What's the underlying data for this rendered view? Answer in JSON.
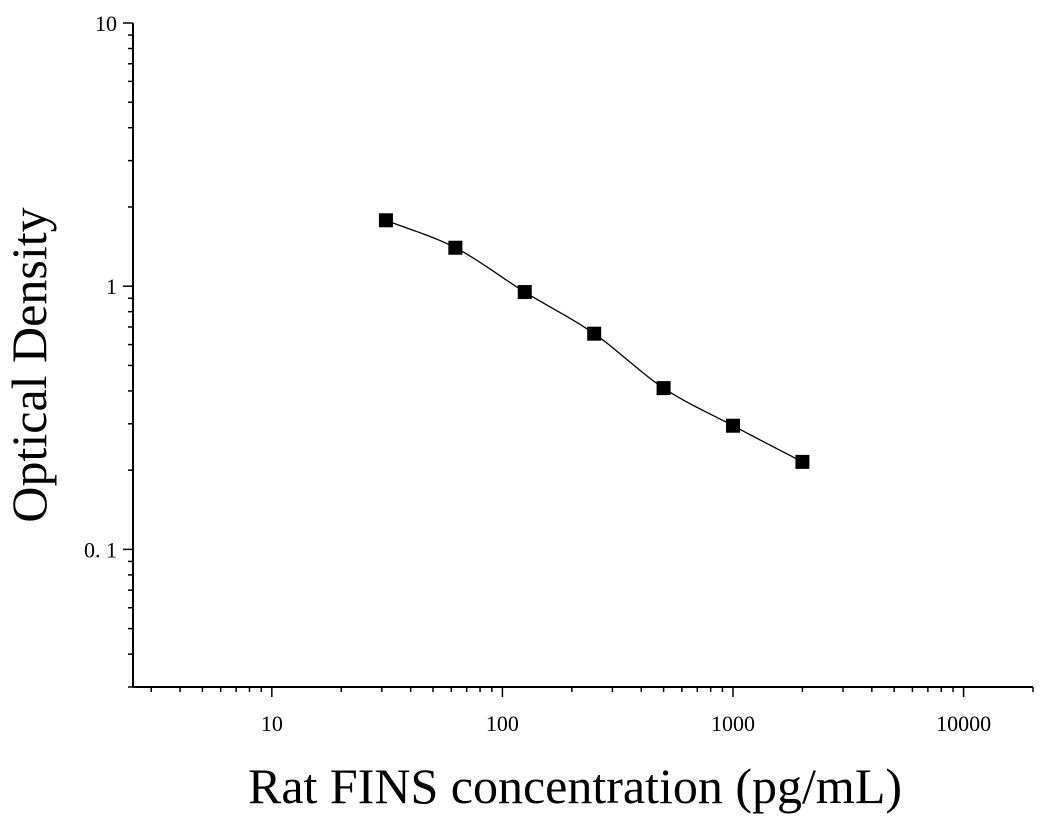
{
  "chart_data": {
    "type": "scatter",
    "xlabel": "Rat FINS concentration (pg/mL)",
    "ylabel": "Optical Density",
    "x_scale": "log",
    "y_scale": "log",
    "xlim": [
      2.5,
      20000
    ],
    "ylim": [
      0.03,
      10
    ],
    "x_tick_labels": [
      {
        "value": 10,
        "label": "10"
      },
      {
        "value": 100,
        "label": "100"
      },
      {
        "value": 1000,
        "label": "1000"
      },
      {
        "value": 10000,
        "label": "10000"
      }
    ],
    "y_tick_labels": [
      {
        "value": 0.1,
        "label": "0. 1"
      },
      {
        "value": 1,
        "label": "1"
      },
      {
        "value": 10,
        "label": "10"
      }
    ],
    "series": [
      {
        "marker": "square",
        "color": "#000000",
        "fit_line": true,
        "points": [
          {
            "x": 31.25,
            "y": 1.78
          },
          {
            "x": 62.5,
            "y": 1.4
          },
          {
            "x": 125,
            "y": 0.95
          },
          {
            "x": 250,
            "y": 0.66
          },
          {
            "x": 500,
            "y": 0.41
          },
          {
            "x": 1000,
            "y": 0.295
          },
          {
            "x": 2000,
            "y": 0.215
          }
        ]
      }
    ]
  }
}
